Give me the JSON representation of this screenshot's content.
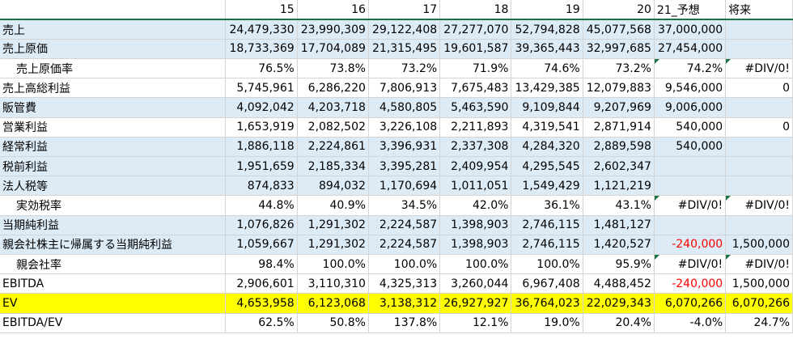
{
  "header": [
    "",
    "15",
    "16",
    "17",
    "18",
    "19",
    "20",
    "21_予想",
    "将来"
  ],
  "rows": [
    {
      "label": "売上",
      "bg": "blue",
      "indent": false,
      "cells": [
        "24,479,330",
        "23,990,309",
        "29,122,408",
        "27,277,070",
        "52,794,828",
        "45,077,568",
        "37,000,000",
        ""
      ]
    },
    {
      "label": "売上原価",
      "bg": "blue",
      "indent": false,
      "cells": [
        "18,733,369",
        "17,704,089",
        "21,315,495",
        "19,601,587",
        "39,365,443",
        "32,997,685",
        "27,454,000",
        ""
      ]
    },
    {
      "label": "売上原価率",
      "bg": "white",
      "indent": true,
      "cells": [
        "76.5%",
        "73.8%",
        "73.2%",
        "71.9%",
        "74.6%",
        "73.2%",
        "74.2%",
        "#DIV/0!"
      ]
    },
    {
      "label": "売上高総利益",
      "bg": "white",
      "indent": false,
      "cells": [
        "5,745,961",
        "6,286,220",
        "7,806,913",
        "7,675,483",
        "13,429,385",
        "12,079,883",
        "9,546,000",
        "0"
      ]
    },
    {
      "label": "販管費",
      "bg": "blue",
      "indent": false,
      "cells": [
        "4,092,042",
        "4,203,718",
        "4,580,805",
        "5,463,590",
        "9,109,844",
        "9,207,969",
        "9,006,000",
        ""
      ]
    },
    {
      "label": "営業利益",
      "bg": "white",
      "indent": false,
      "cells": [
        "1,653,919",
        "2,082,502",
        "3,226,108",
        "2,211,893",
        "4,319,541",
        "2,871,914",
        "540,000",
        "0"
      ]
    },
    {
      "label": "経常利益",
      "bg": "blue",
      "indent": false,
      "cells": [
        "1,886,118",
        "2,224,861",
        "3,396,931",
        "2,337,308",
        "4,284,320",
        "2,889,598",
        "540,000",
        ""
      ]
    },
    {
      "label": "税前利益",
      "bg": "blue",
      "indent": false,
      "cells": [
        "1,951,659",
        "2,185,334",
        "3,395,281",
        "2,409,954",
        "4,295,545",
        "2,602,347",
        "",
        ""
      ]
    },
    {
      "label": "法人税等",
      "bg": "blue",
      "indent": false,
      "cells": [
        "874,833",
        "894,032",
        "1,170,694",
        "1,011,051",
        "1,549,429",
        "1,121,219",
        "",
        ""
      ]
    },
    {
      "label": "実効税率",
      "bg": "white",
      "indent": true,
      "cells": [
        "44.8%",
        "40.9%",
        "34.5%",
        "42.0%",
        "36.1%",
        "43.1%",
        "#DIV/0!",
        "#DIV/0!"
      ]
    },
    {
      "label": "当期純利益",
      "bg": "blue",
      "indent": false,
      "cells": [
        "1,076,826",
        "1,291,302",
        "2,224,587",
        "1,398,903",
        "2,746,115",
        "1,481,127",
        "",
        ""
      ]
    },
    {
      "label": "親会社株主に帰属する当期純利益",
      "bg": "blue",
      "indent": false,
      "cells": [
        "1,059,667",
        "1,291,302",
        "2,224,587",
        "1,398,903",
        "2,746,115",
        "1,420,527",
        "-240,000",
        "1,500,000"
      ]
    },
    {
      "label": "親会社率",
      "bg": "white",
      "indent": true,
      "cells": [
        "98.4%",
        "100.0%",
        "100.0%",
        "100.0%",
        "100.0%",
        "95.9%",
        "#DIV/0!",
        "#DIV/0!"
      ]
    },
    {
      "label": "EBITDA",
      "bg": "white",
      "indent": false,
      "cells": [
        "2,906,601",
        "3,110,310",
        "4,325,313",
        "3,260,044",
        "6,967,408",
        "4,488,452",
        "-240,000",
        "1,500,000"
      ]
    },
    {
      "label": "EV",
      "bg": "yellow",
      "indent": false,
      "cells": [
        "4,653,958",
        "6,123,068",
        "3,138,312",
        "26,927,927",
        "36,764,023",
        "22,029,343",
        "6,070,266",
        "6,070,266"
      ]
    },
    {
      "label": "EBITDA/EV",
      "bg": "white",
      "indent": false,
      "cells": [
        "62.5%",
        "50.8%",
        "137.8%",
        "12.1%",
        "19.0%",
        "20.4%",
        "-4.0%",
        "24.7%"
      ]
    }
  ],
  "colors": {
    "header_rule": "#1e7145",
    "blue_fill": "#ddebf7",
    "yellow_fill": "#ffff00",
    "negative": "#ff0000"
  }
}
